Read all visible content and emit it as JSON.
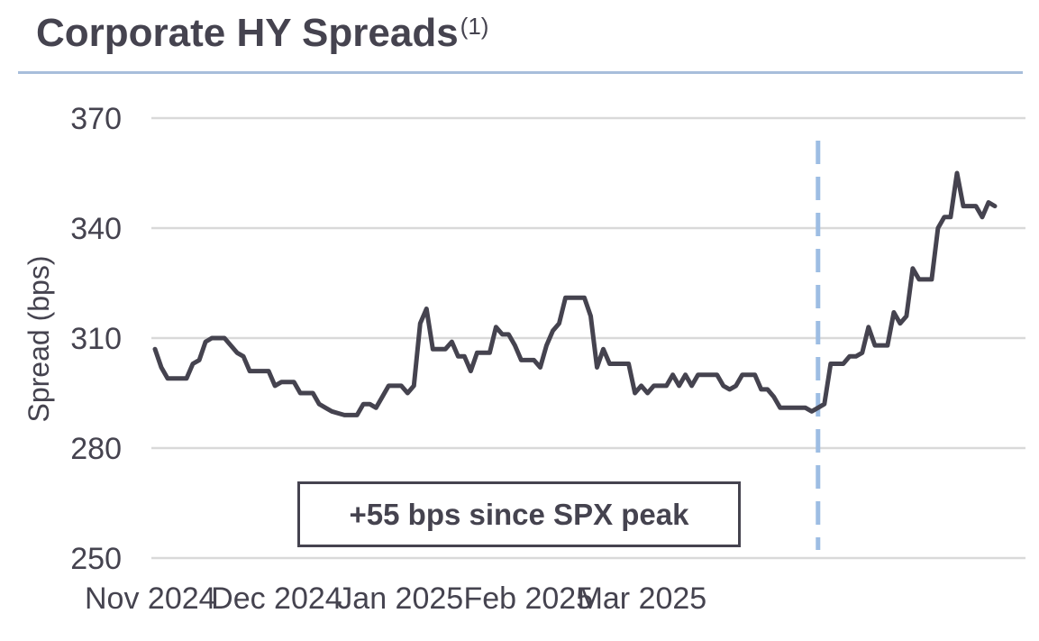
{
  "chart_data": {
    "type": "line",
    "title": "Corporate HY Spreads",
    "title_superscript": "(1)",
    "xlabel": "",
    "ylabel": "Spread (bps)",
    "ylim": [
      250,
      370
    ],
    "yticks": [
      250,
      280,
      310,
      340,
      370
    ],
    "grid": true,
    "xticks": [
      "Nov 2024",
      "Dec 2024",
      "Jan 2025",
      "Feb 2025",
      "Mar 2025"
    ],
    "x_unit": "trading day index (0 = Nov 1, 2024)",
    "xtick_positions": [
      0,
      20,
      40,
      60,
      78
    ],
    "series": [
      {
        "name": "Corporate HY Spread",
        "color": "#45434f",
        "values": [
          307,
          302,
          299,
          299,
          299,
          299,
          303,
          304,
          309,
          310,
          310,
          310,
          308,
          306,
          305,
          301,
          301,
          301,
          301,
          297,
          298,
          298,
          298,
          295,
          295,
          295,
          292,
          291,
          290,
          289.5,
          289,
          289,
          289,
          292,
          292,
          291,
          294,
          297,
          297,
          297,
          295,
          297,
          314,
          318,
          307,
          307,
          307,
          309,
          305,
          305,
          301,
          306,
          306,
          306,
          313,
          311,
          311,
          308,
          304,
          304,
          304,
          302,
          308,
          312,
          314,
          321,
          321,
          321,
          321,
          316,
          302,
          307,
          303,
          303,
          303,
          303,
          295,
          297,
          295,
          297,
          297,
          297,
          300,
          297,
          300,
          297,
          300,
          300,
          300,
          300,
          297,
          296,
          297,
          300,
          300,
          300,
          296,
          296,
          294,
          291,
          291,
          291,
          291,
          291,
          290,
          291,
          292,
          303,
          303,
          303,
          305,
          305,
          306,
          313,
          308,
          308,
          308,
          317,
          314,
          316,
          329,
          326,
          326,
          326,
          340,
          343,
          343,
          355,
          346,
          346,
          346,
          343,
          347,
          346
        ]
      }
    ],
    "annotations": [
      {
        "type": "vline",
        "x": 105,
        "label": "SPX peak",
        "style": "dashed",
        "color": "#9dbde3"
      },
      {
        "type": "textbox",
        "text": "+55 bps since SPX peak"
      }
    ]
  }
}
